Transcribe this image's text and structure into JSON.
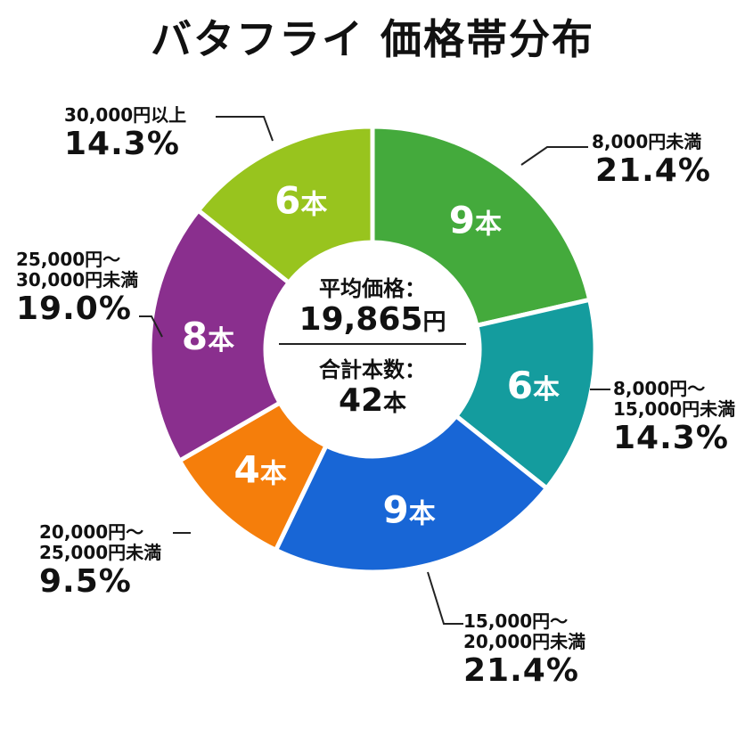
{
  "chart_data": {
    "type": "pie",
    "title": "バタフライ 価格帯分布",
    "unit_suffix": "本",
    "categories": [
      "8,000円未満",
      "8,000円〜15,000円未満",
      "15,000円〜20,000円未満",
      "20,000円〜25,000円未満",
      "25,000円〜30,000円未満",
      "30,000円以上"
    ],
    "values": [
      9,
      6,
      9,
      4,
      8,
      6
    ],
    "slice_labels": [
      "9",
      "6",
      "9",
      "4",
      "8",
      "6"
    ],
    "percentages": [
      "21.4%",
      "14.3%",
      "21.4%",
      "9.5%",
      "19.0%",
      "14.3%"
    ],
    "label_lines": [
      [
        "8,000円未満"
      ],
      [
        "8,000円〜",
        "15,000円未満"
      ],
      [
        "15,000円〜",
        "20,000円未満"
      ],
      [
        "20,000円〜",
        "25,000円未満"
      ],
      [
        "25,000円〜",
        "30,000円未満"
      ],
      [
        "30,000円以上"
      ]
    ],
    "colors": [
      "#44aa3c",
      "#149c9e",
      "#1866d6",
      "#f57e0b",
      "#8a2f8e",
      "#98c41e"
    ],
    "donut": true
  },
  "center": {
    "avg_label": "平均価格：",
    "avg_value": "19,865",
    "avg_unit": "円",
    "total_label": "合計本数：",
    "total_value": "42",
    "total_unit": "本"
  }
}
